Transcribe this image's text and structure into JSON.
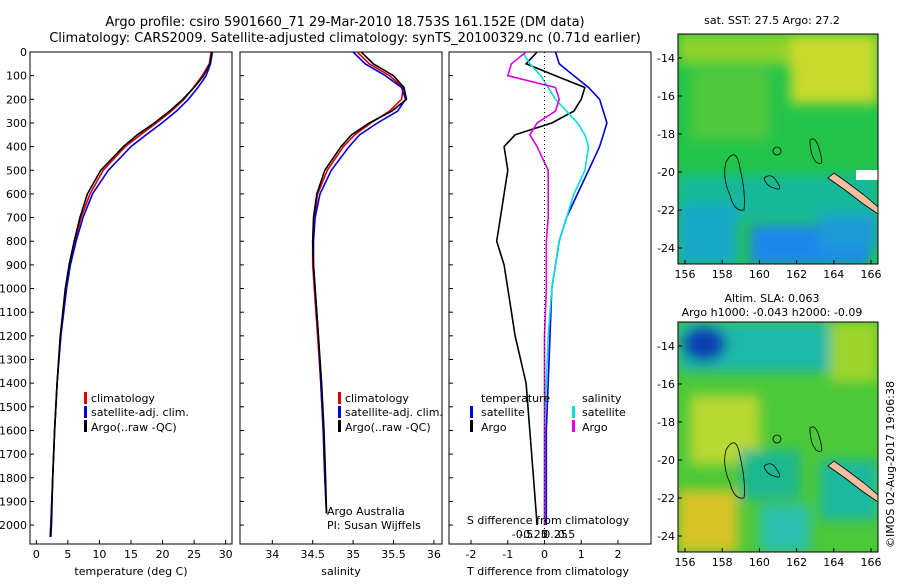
{
  "title_line1": "Argo profile: csiro 5901660_71 29-Mar-2010 18.753S 161.152E (DM data)",
  "title_line2": "Climatology: CARS2009. Satellite-adjusted climatology: synTS_20100329.nc (0.71d earlier)",
  "colors": {
    "climatology": "#e00000",
    "satellite": "#0000d8",
    "argo": "#000000",
    "sal_sat": "#00e0e0",
    "sal_argo": "#e000e0",
    "coast": "#f2bfa0"
  },
  "depth_axis": {
    "ticks": [
      0,
      100,
      200,
      300,
      400,
      500,
      600,
      700,
      800,
      900,
      1000,
      1100,
      1200,
      1300,
      1400,
      1500,
      1600,
      1700,
      1800,
      1900,
      2000
    ],
    "labels": [
      "0",
      "100",
      "200",
      "300",
      "400",
      "500",
      "600",
      "700",
      "800",
      "900",
      "1000",
      "1100",
      "1200",
      "1300",
      "1400",
      "1500",
      "1600",
      "1700",
      "1800",
      "1900",
      "2000"
    ],
    "range": [
      0,
      2080
    ]
  },
  "chart_data": [
    {
      "type": "line",
      "name": "temperature-panel",
      "xlabel": "temperature (deg C)",
      "xlim": [
        -1,
        31
      ],
      "xticks": [
        0,
        5,
        10,
        15,
        20,
        25,
        30
      ],
      "xtick_labels": [
        "0",
        "5",
        "10",
        "15",
        "20",
        "25",
        "30"
      ],
      "depth": [
        0,
        50,
        100,
        150,
        200,
        250,
        300,
        350,
        400,
        500,
        600,
        700,
        800,
        900,
        1000,
        1200,
        1400,
        1600,
        1800,
        2000,
        2050
      ],
      "series": [
        {
          "name": "climatology",
          "values": [
            27.7,
            27.4,
            26.3,
            24.9,
            23.4,
            21.4,
            19.0,
            16.5,
            14.1,
            10.6,
            8.5,
            7.1,
            6.1,
            5.3,
            4.7,
            3.8,
            3.3,
            2.9,
            2.6,
            2.3,
            2.2
          ]
        },
        {
          "name": "satellite-adj. clim.",
          "values": [
            27.9,
            27.6,
            26.9,
            25.6,
            24.1,
            22.2,
            19.9,
            17.4,
            15.0,
            11.4,
            8.9,
            7.4,
            6.3,
            5.4,
            4.8,
            3.9,
            3.3,
            2.9,
            2.6,
            2.3,
            2.2
          ]
        },
        {
          "name": "Argo(..raw -QC)",
          "values": [
            27.8,
            27.5,
            26.5,
            25.0,
            23.2,
            21.1,
            18.7,
            16.0,
            13.8,
            10.2,
            8.1,
            6.9,
            6.0,
            5.2,
            4.6,
            3.8,
            3.3,
            2.9,
            2.6,
            2.4,
            2.3
          ]
        }
      ],
      "legend": [
        "climatology",
        "satellite-adj. clim.",
        "Argo(..raw -QC)"
      ]
    },
    {
      "type": "line",
      "name": "salinity-panel",
      "xlabel": "salinity",
      "xlim": [
        33.6,
        36.1
      ],
      "xticks": [
        34,
        34.5,
        35,
        35.5,
        36
      ],
      "xtick_labels": [
        "34",
        "34.5",
        "35",
        "35.5",
        "36"
      ],
      "depth": [
        0,
        50,
        100,
        150,
        200,
        250,
        300,
        350,
        400,
        500,
        600,
        700,
        800,
        900,
        1000,
        1200,
        1400,
        1600,
        1800,
        1950
      ],
      "series": [
        {
          "name": "climatology",
          "values": [
            35.05,
            35.2,
            35.45,
            35.62,
            35.6,
            35.45,
            35.22,
            35.02,
            34.88,
            34.68,
            34.56,
            34.52,
            34.5,
            34.5,
            34.52,
            34.56,
            34.6,
            34.63,
            34.65,
            34.67
          ]
        },
        {
          "name": "satellite-adj. clim.",
          "values": [
            35.0,
            35.15,
            35.4,
            35.6,
            35.65,
            35.55,
            35.3,
            35.08,
            34.95,
            34.73,
            34.59,
            34.53,
            34.51,
            34.51,
            34.53,
            34.57,
            34.6,
            34.63,
            34.65,
            34.67
          ]
        },
        {
          "name": "Argo(..raw -QC)",
          "values": [
            35.1,
            35.25,
            35.5,
            35.63,
            35.66,
            35.48,
            35.2,
            34.98,
            34.85,
            34.65,
            34.55,
            34.51,
            34.5,
            34.51,
            34.53,
            34.57,
            34.61,
            34.64,
            34.66,
            34.67
          ]
        }
      ],
      "legend": [
        "climatology",
        "satellite-adj. clim.",
        "Argo(..raw -QC)"
      ],
      "annotation": [
        "Argo Australia",
        "PI: Susan Wijffels"
      ]
    },
    {
      "type": "line",
      "name": "difference-panel",
      "xlabel_top": "S difference from climatology",
      "xlabel": "T difference from climatology",
      "xlim": [
        -2.6,
        2.9
      ],
      "xticks": [
        -2,
        -1,
        0,
        1,
        2
      ],
      "xtick_labels": [
        "-2",
        "-1",
        "0",
        "1",
        "2"
      ],
      "s_ticks": [
        -0.5,
        -0.25,
        0,
        0.25,
        0.5
      ],
      "s_tick_labels": [
        "-0.5",
        "-0.25",
        "0",
        "0.25",
        "0.5"
      ],
      "depth": [
        0,
        50,
        100,
        150,
        200,
        250,
        300,
        350,
        400,
        500,
        600,
        700,
        800,
        900,
        1000,
        1200,
        1400,
        1600,
        1800,
        2000
      ],
      "series": [
        {
          "name": "temperature satellite",
          "values": [
            0.3,
            0.4,
            0.8,
            1.2,
            1.5,
            1.6,
            1.7,
            1.6,
            1.5,
            1.2,
            0.9,
            0.6,
            0.4,
            0.3,
            0.2,
            0.15,
            0.1,
            0.05,
            0.05,
            0.05
          ]
        },
        {
          "name": "temperature Argo",
          "values": [
            -0.2,
            -0.5,
            0.3,
            1.1,
            1.0,
            0.8,
            0.2,
            -0.8,
            -1.1,
            -1.0,
            -1.1,
            -1.2,
            -1.3,
            -1.1,
            -1.0,
            -0.8,
            -0.5,
            -0.4,
            -0.3,
            -0.2
          ]
        },
        {
          "name": "salinity satellite",
          "values": [
            -0.6,
            -0.4,
            -0.1,
            0.1,
            0.3,
            0.6,
            0.9,
            1.1,
            1.2,
            1.1,
            0.8,
            0.6,
            0.4,
            0.3,
            0.2,
            0.1,
            0.05,
            0.0,
            0.0,
            0.0
          ]
        },
        {
          "name": "salinity Argo",
          "values": [
            -0.5,
            -0.9,
            -1.0,
            0.3,
            0.4,
            0.3,
            -0.2,
            -0.4,
            -0.2,
            0.1,
            0.1,
            0.1,
            0.05,
            0.05,
            0.05,
            0.0,
            0.0,
            0.0,
            0.0,
            0.0
          ]
        }
      ],
      "legend": {
        "temperature": "temperature",
        "salinity": "salinity",
        "satellite": "satellite",
        "argo": "Argo"
      }
    },
    {
      "type": "heatmap",
      "name": "sst-map",
      "title": "sat. SST: 27.5 Argo: 27.2",
      "xticks": [
        "156",
        "158",
        "160",
        "162",
        "164",
        "166"
      ],
      "yticks": [
        "-14",
        "-16",
        "-18",
        "-20",
        "-22",
        "-24"
      ]
    },
    {
      "type": "heatmap",
      "name": "sla-map",
      "title_line1": "Altim. SLA: 0.063",
      "title_line2": "Argo h1000: -0.043 h2000: -0.09",
      "xticks": [
        "156",
        "158",
        "160",
        "162",
        "164",
        "166"
      ],
      "yticks": [
        "-14",
        "-16",
        "-18",
        "-20",
        "-22",
        "-24"
      ]
    }
  ],
  "timestamp": "©IMOS 02-Aug-2017 19:06:38"
}
